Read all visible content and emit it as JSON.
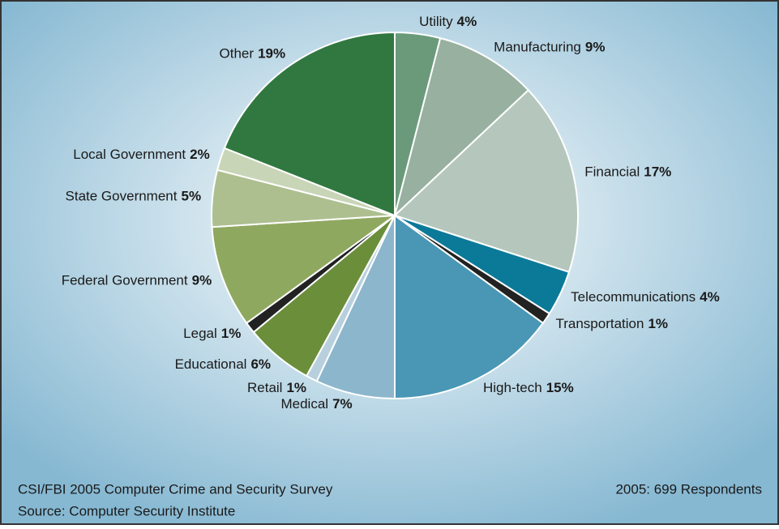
{
  "chart_data": {
    "type": "pie",
    "categories": [
      "Utility",
      "Manufacturing",
      "Financial",
      "Telecommunications",
      "Transportation",
      "High-tech",
      "Medical",
      "Retail",
      "Educational",
      "Legal",
      "Federal Government",
      "State Government",
      "Local Government",
      "Other"
    ],
    "values": [
      4,
      9,
      17,
      4,
      1,
      15,
      7,
      1,
      6,
      1,
      9,
      5,
      2,
      19
    ],
    "value_labels": [
      "4%",
      "9%",
      "17%",
      "4%",
      "1%",
      "15%",
      "7%",
      "1%",
      "6%",
      "1%",
      "9%",
      "5%",
      "2%",
      "19%"
    ],
    "colors": [
      "#6a9a7a",
      "#97b09f",
      "#b5c7bd",
      "#0b7a99",
      "#222222",
      "#4a96b5",
      "#8cb6cc",
      "#b8d0de",
      "#6a8e3a",
      "#222222",
      "#8fa860",
      "#adbf8f",
      "#c9d5b7",
      "#317840"
    ],
    "footnotes": [
      "CSI/FBI 2005 Computer Crime and Security Survey",
      "Source: Computer Security Institute"
    ],
    "respondents": "2005: 699 Respondents"
  }
}
